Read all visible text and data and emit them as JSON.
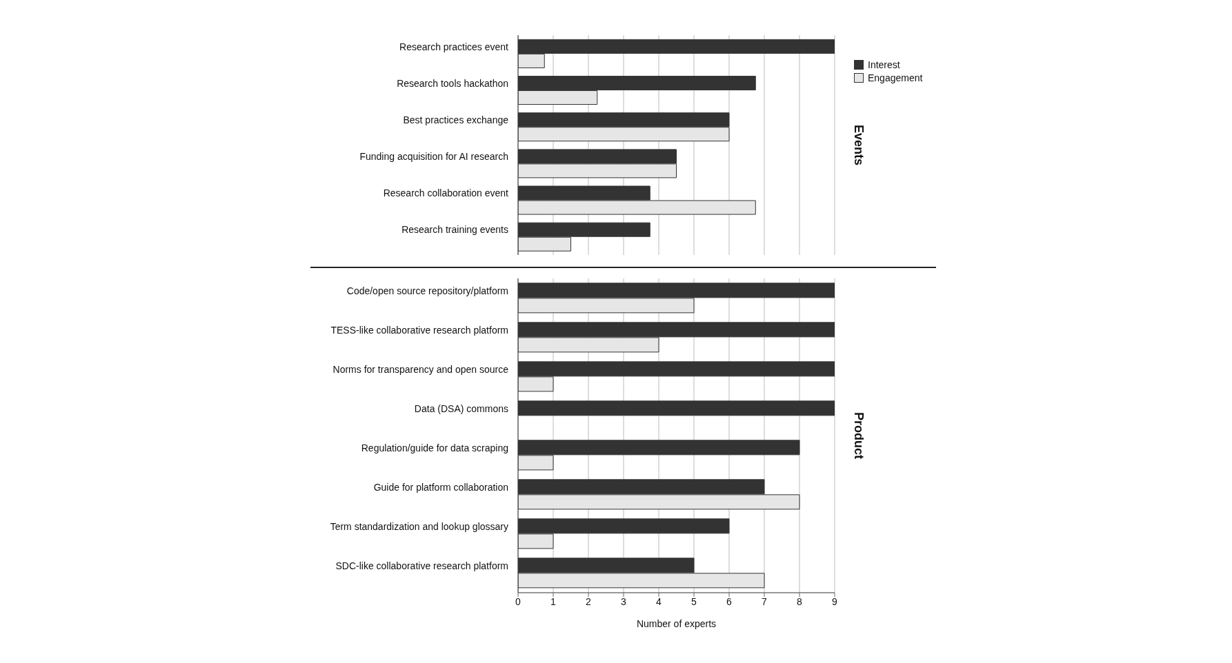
{
  "chart_data": [
    {
      "type": "bar",
      "orientation": "horizontal",
      "y2label": "Events",
      "categories": [
        "Research practices event",
        "Research tools hackathon",
        "Best practices exchange",
        "Funding acquisition for AI research",
        "Research collaboration event",
        "Research training events"
      ],
      "series": [
        {
          "name": "Interest",
          "color": "#333333",
          "values": [
            9,
            6.75,
            6,
            4.5,
            3.75,
            3.75
          ]
        },
        {
          "name": "Engagement",
          "color": "#e6e6e6",
          "values": [
            0.75,
            2.25,
            6,
            4.5,
            6.75,
            1.5
          ]
        }
      ],
      "xlim": [
        0,
        9
      ],
      "xticks": [
        0,
        1,
        2,
        3,
        4,
        5,
        6,
        7,
        8,
        9
      ],
      "grid": "x",
      "tick_labels": "y",
      "legend": "right"
    },
    {
      "type": "bar",
      "orientation": "horizontal",
      "y2label": "Product",
      "xlabel": "Number of experts",
      "categories": [
        "Code/open source repository/platform",
        "TESS-like collaborative research platform",
        "Norms for transparency and open source",
        "Data (DSA) commons",
        "Regulation/guide for data scraping",
        "Guide for platform collaboration",
        "Term standardization and lookup glossary",
        "SDC-like collaborative research platform"
      ],
      "series": [
        {
          "color": "#333333",
          "values": [
            9,
            9,
            9,
            9,
            8,
            7,
            6,
            5
          ]
        },
        {
          "color": "#e6e6e6",
          "values": [
            5,
            4,
            1,
            null,
            1,
            8,
            1,
            7
          ]
        }
      ],
      "xlim": [
        0,
        9
      ],
      "xticks": [
        0,
        1,
        2,
        3,
        4,
        5,
        6,
        7,
        8,
        9
      ],
      "grid": "x"
    }
  ]
}
